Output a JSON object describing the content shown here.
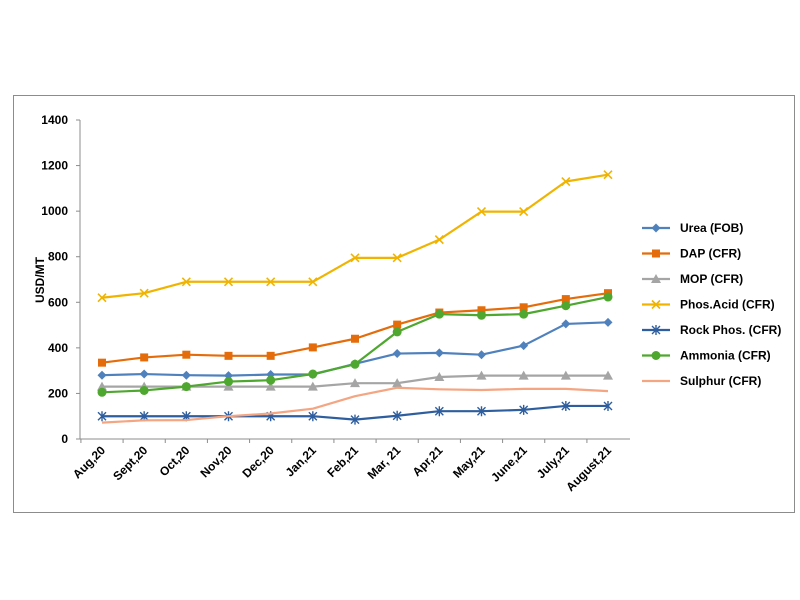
{
  "chart_data": {
    "type": "line",
    "title": "",
    "xlabel": "",
    "ylabel": "USD/MT",
    "ylim": [
      0,
      1400
    ],
    "ytick_step": 200,
    "grid": false,
    "legend_position": "right",
    "categories": [
      "Aug,20",
      "Sept,20",
      "Oct,20",
      "Nov,20",
      "Dec,20",
      "Jan,21",
      "Feb,21",
      "Mar, 21",
      "Apr,21",
      "May,21",
      "June,21",
      "July,21",
      "August,21"
    ],
    "series": [
      {
        "name": "Urea (FOB)",
        "color": "#4F81BD",
        "marker": "diamond",
        "values": [
          280,
          285,
          280,
          278,
          283,
          283,
          330,
          375,
          378,
          370,
          410,
          505,
          512
        ]
      },
      {
        "name": "DAP (CFR)",
        "color": "#E46C0A",
        "marker": "square",
        "values": [
          335,
          358,
          370,
          365,
          365,
          402,
          440,
          502,
          555,
          565,
          578,
          614,
          640
        ]
      },
      {
        "name": "MOP (CFR)",
        "color": "#A5A5A5",
        "marker": "triangle",
        "values": [
          230,
          230,
          230,
          230,
          230,
          230,
          245,
          245,
          272,
          278,
          278,
          278,
          278
        ]
      },
      {
        "name": "Phos.Acid (CFR)",
        "color": "#F0B400",
        "marker": "x",
        "values": [
          620,
          640,
          690,
          690,
          690,
          690,
          795,
          795,
          875,
          998,
          998,
          1130,
          1160
        ]
      },
      {
        "name": "Rock Phos. (CFR)",
        "color": "#2E5E9E",
        "marker": "star",
        "values": [
          100,
          100,
          100,
          100,
          100,
          100,
          85,
          102,
          122,
          122,
          128,
          145,
          145
        ]
      },
      {
        "name": "Ammonia (CFR)",
        "color": "#4EA72E",
        "marker": "circle",
        "values": [
          205,
          213,
          230,
          252,
          258,
          285,
          328,
          470,
          548,
          543,
          548,
          585,
          623
        ]
      },
      {
        "name": "Sulphur (CFR)",
        "color": "#F4A582",
        "marker": "none",
        "values": [
          72,
          82,
          83,
          100,
          112,
          133,
          188,
          225,
          218,
          215,
          220,
          220,
          210
        ]
      }
    ]
  }
}
